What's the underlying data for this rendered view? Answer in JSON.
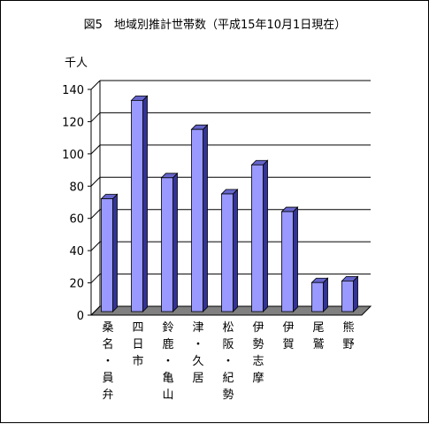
{
  "chart_data": {
    "type": "bar",
    "title": "図5　地域別推計世帯数（平成15年10月1日現在）",
    "ylabel": "千人",
    "xlabel": "",
    "ylim": [
      0,
      140
    ],
    "yticks": [
      0,
      20,
      40,
      60,
      80,
      100,
      120,
      140
    ],
    "grid": true,
    "legend": "none",
    "colors": {
      "bar_front": "#9999ff",
      "bar_side": "#333399",
      "bar_top": "#6666cc",
      "gridline": "#000000",
      "floor": "#808080"
    },
    "categories": [
      "桑名・員弁",
      "四日市",
      "鈴鹿・亀山",
      "津・久居",
      "松阪・紀勢",
      "伊勢志摩",
      "伊賀",
      "尾鷲",
      "熊野"
    ],
    "category_label_lines": [
      [
        "桑",
        "名",
        "・",
        "員",
        "弁"
      ],
      [
        "四",
        "日",
        "市"
      ],
      [
        "鈴",
        "鹿",
        "・",
        "亀",
        "山"
      ],
      [
        "津",
        "・",
        "久",
        "居"
      ],
      [
        "松",
        "阪",
        "・",
        "紀",
        "勢"
      ],
      [
        "伊",
        "勢",
        "志",
        "摩"
      ],
      [
        "伊",
        "賀"
      ],
      [
        "尾",
        "鷲"
      ],
      [
        "熊",
        "野"
      ]
    ],
    "values": [
      70,
      131,
      83,
      113,
      73,
      91,
      62,
      18,
      19
    ]
  }
}
